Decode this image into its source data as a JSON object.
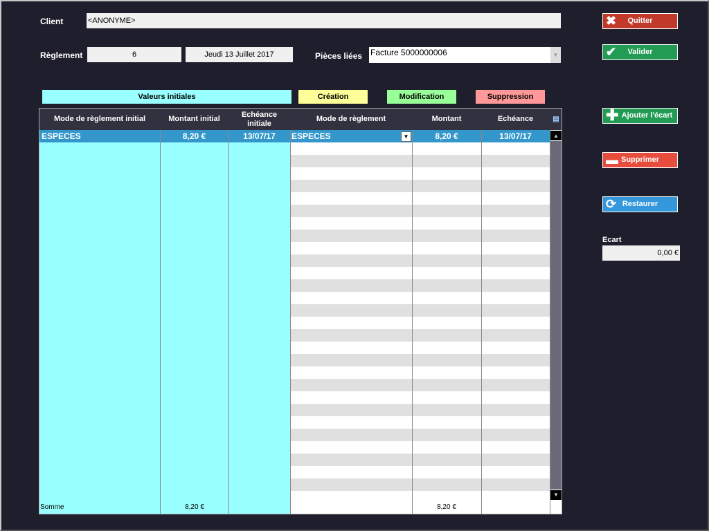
{
  "header": {
    "client_label": "Client",
    "client_value": "<ANONYME>",
    "reglement_label": "Règlement",
    "reglement_number": "6",
    "reglement_date": "Jeudi 13 Juillet 2017",
    "pieces_label": "Pièces liées",
    "pieces_value": "Facture  5000000006"
  },
  "legend": {
    "initial": "Valeurs initiales",
    "creation": "Création",
    "modification": "Modification",
    "suppression": "Suppression"
  },
  "colors": {
    "initial": "#99ffff",
    "creation": "#ffff99",
    "modification": "#99ff99",
    "suppression": "#ff9999",
    "selected": "#3397cc"
  },
  "table": {
    "columns": [
      "Mode de règlement initial",
      "Montant initial",
      "Echéance initiale",
      "Mode de règlement",
      "Montant",
      "Echéance"
    ],
    "rows": [
      {
        "mode_initial": "ESPECES",
        "montant_initial": "8,20 €",
        "echeance_initiale": "13/07/17",
        "mode": "ESPECES",
        "montant": "8,20 €",
        "echeance": "13/07/17"
      }
    ],
    "footer": {
      "label": "Somme",
      "montant_initial": "8,20 €",
      "montant": "8,20 €"
    }
  },
  "buttons": {
    "quitter": "Quitter",
    "valider": "Valider",
    "ajouter": "Ajouter l'écart",
    "supprimer": "Supprimer",
    "restaurer": "Restaurer"
  },
  "ecart": {
    "label": "Ecart",
    "value": "0,00 €"
  }
}
